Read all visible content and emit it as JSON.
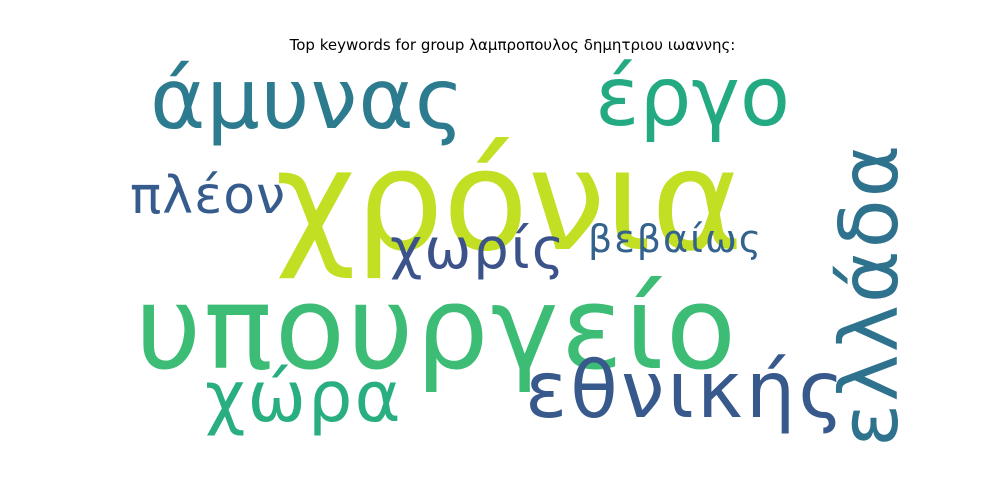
{
  "title": "Top keywords for group λαμπροπουλος δημητριου ιωαννης:",
  "words": [
    {
      "text": "χρόνια",
      "color": "#c2df23"
    },
    {
      "text": "υπουργείο",
      "color": "#3cbc75"
    },
    {
      "text": "άμυνας",
      "color": "#2c7b8e"
    },
    {
      "text": "έργο",
      "color": "#24aa83"
    },
    {
      "text": "ελλάδα",
      "color": "#2e728e"
    },
    {
      "text": "εθνικής",
      "color": "#38598c"
    },
    {
      "text": "χώρα",
      "color": "#29af7f"
    },
    {
      "text": "πλέον",
      "color": "#365c8d"
    },
    {
      "text": "χωρίς",
      "color": "#3b528b"
    },
    {
      "text": "βεβαίως",
      "color": "#33638d"
    }
  ]
}
